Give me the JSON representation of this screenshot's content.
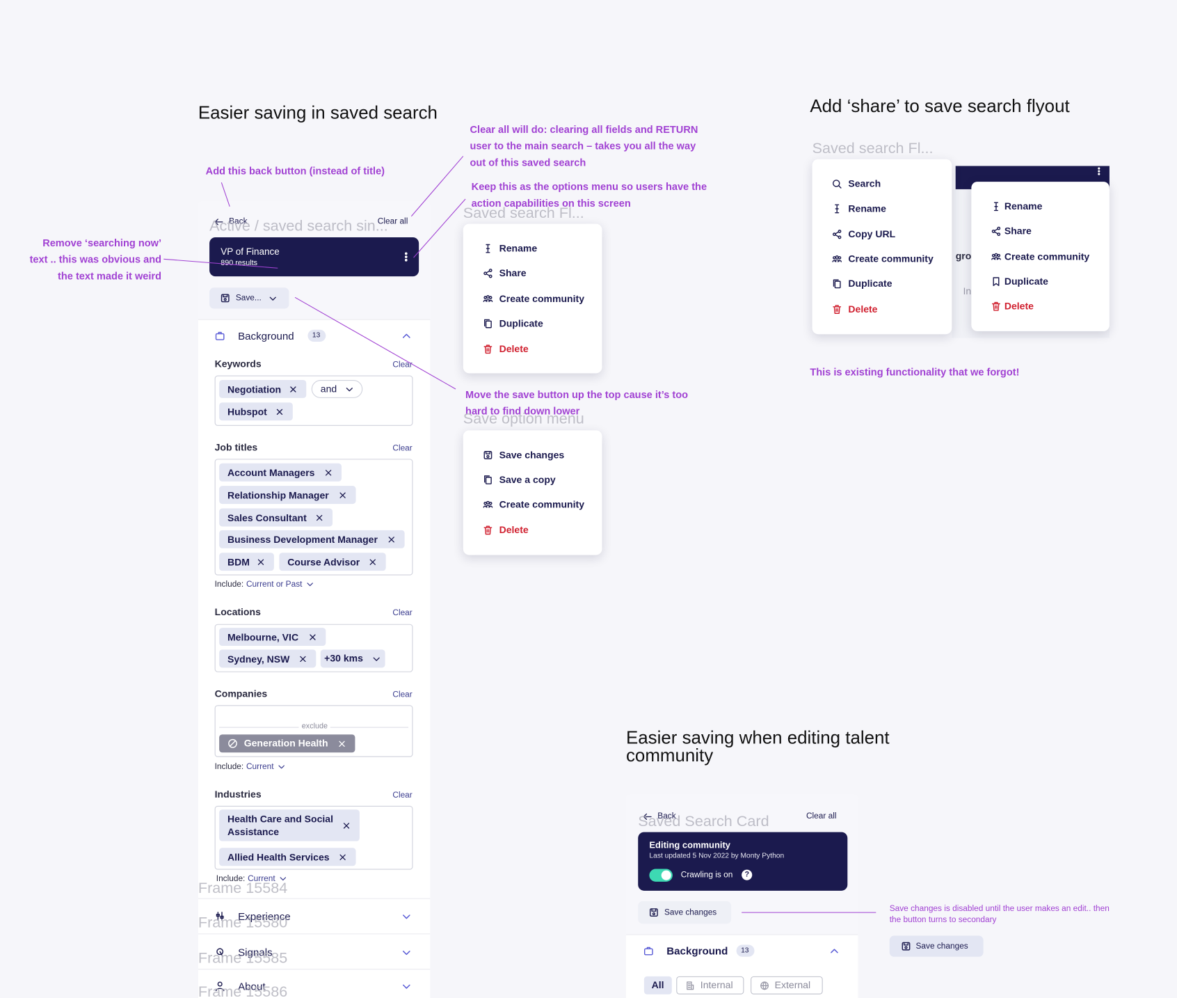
{
  "titles": {
    "saved_search": "Easier saving in saved search",
    "share_flyout": "Add ‘share’ to save search flyout",
    "talent_community": "Easier saving when editing talent community"
  },
  "annotations": {
    "back_button": "Add this back button (instead of title)",
    "clear_all": "Clear all will do: clearing all fields and RETURN user to the main search – takes you all the way out of this saved search",
    "options_menu": "Keep this as the options menu so users have the action capabilities on this screen",
    "searching_now": "Remove ‘searching now’ text .. this was obvious and the text made it weird",
    "save_button": "Move the save button up the top cause it’s too hard to find down lower",
    "existing": "This is existing functionality that we forgot!",
    "save_disabled": "Save changes is disabled until the user makes an edit.. then the button turns to secondary"
  },
  "frame_labels": [
    "Active / saved search sin...",
    "Saved search Fl...",
    "Save option menu",
    "Saved search Fl...",
    "Saved Search Card",
    "Frame 15584",
    "Frame 15580",
    "Frame 15585",
    "Frame 15586"
  ],
  "saved_search": {
    "back": "Back",
    "clear_all": "Clear all",
    "card_title": "VP of Finance",
    "card_subtitle": "890 results",
    "save_button": "Save...",
    "section": "Background",
    "section_count": 13,
    "fields": [
      {
        "label": "Keywords",
        "clear": "Clear",
        "chips": [
          "Negotiation",
          "and",
          "Hubspot"
        ]
      },
      {
        "label": "Job titles",
        "clear": "Clear",
        "chips": [
          "Account Managers",
          "Relationship Manager",
          "Sales Consultant",
          "Business Development Manager",
          "BDM",
          "Course Advisor"
        ],
        "include": "Include:",
        "include_value": "Current or Past"
      },
      {
        "label": "Locations",
        "clear": "Clear",
        "chips": [
          "Melbourne, VIC",
          "Sydney, NSW",
          "+30 kms"
        ]
      },
      {
        "label": "Companies",
        "clear": "Clear",
        "divider": "exclude",
        "chips": [
          "Generation Health"
        ],
        "include": "Include:",
        "include_value": "Current"
      },
      {
        "label": "Industries",
        "clear": "Clear",
        "chips": [
          "Health Care and Social Assistance",
          "Allied Health Services"
        ],
        "include": "Include:",
        "include_value": "Current"
      }
    ],
    "collapsed": [
      "Experience",
      "Signals",
      "About"
    ]
  },
  "menus": [
    {
      "items": [
        "Rename",
        "Share",
        "Create community",
        "Duplicate",
        "Delete"
      ]
    },
    {
      "items": [
        "Save changes",
        "Save a copy",
        "Create community",
        "Delete"
      ]
    },
    {
      "items": [
        "Search",
        "Rename",
        "Copy URL",
        "Create community",
        "Duplicate",
        "Delete"
      ]
    },
    {
      "items": [
        "Rename",
        "Share",
        "Create community",
        "Duplicate",
        "Delete"
      ]
    }
  ],
  "flyout_background": [
    "gro",
    "In"
  ],
  "talent_community": {
    "back": "Back",
    "clear_all": "Clear all",
    "card_title": "Editing community",
    "card_subtitle": "Last updated 5 Nov 2022 by Monty Python",
    "toggle_label": "Crawling is on",
    "help": "?",
    "save_button": "Save changes",
    "section": "Background",
    "section_count": 13,
    "tabs": [
      "All",
      "Internal",
      "External"
    ],
    "secondary_button": "Save changes"
  }
}
